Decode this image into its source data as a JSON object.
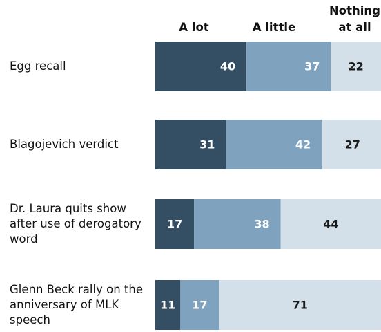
{
  "chart_data": {
    "type": "stacked-bar-horizontal",
    "categories": [
      "Egg recall",
      "Blagojevich verdict",
      "Dr. Laura quits show after use of derogatory word",
      "Glenn Beck rally on the anniversary of MLK speech"
    ],
    "series": [
      {
        "name": "A lot",
        "color": "#344f63",
        "values": [
          40,
          31,
          17,
          11
        ]
      },
      {
        "name": "A little",
        "color": "#7fa3bf",
        "values": [
          37,
          42,
          38,
          17
        ]
      },
      {
        "name": "Nothing at all",
        "color": "#d3e0ea",
        "values": [
          22,
          27,
          44,
          71
        ]
      }
    ],
    "xlim": [
      0,
      99
    ]
  }
}
